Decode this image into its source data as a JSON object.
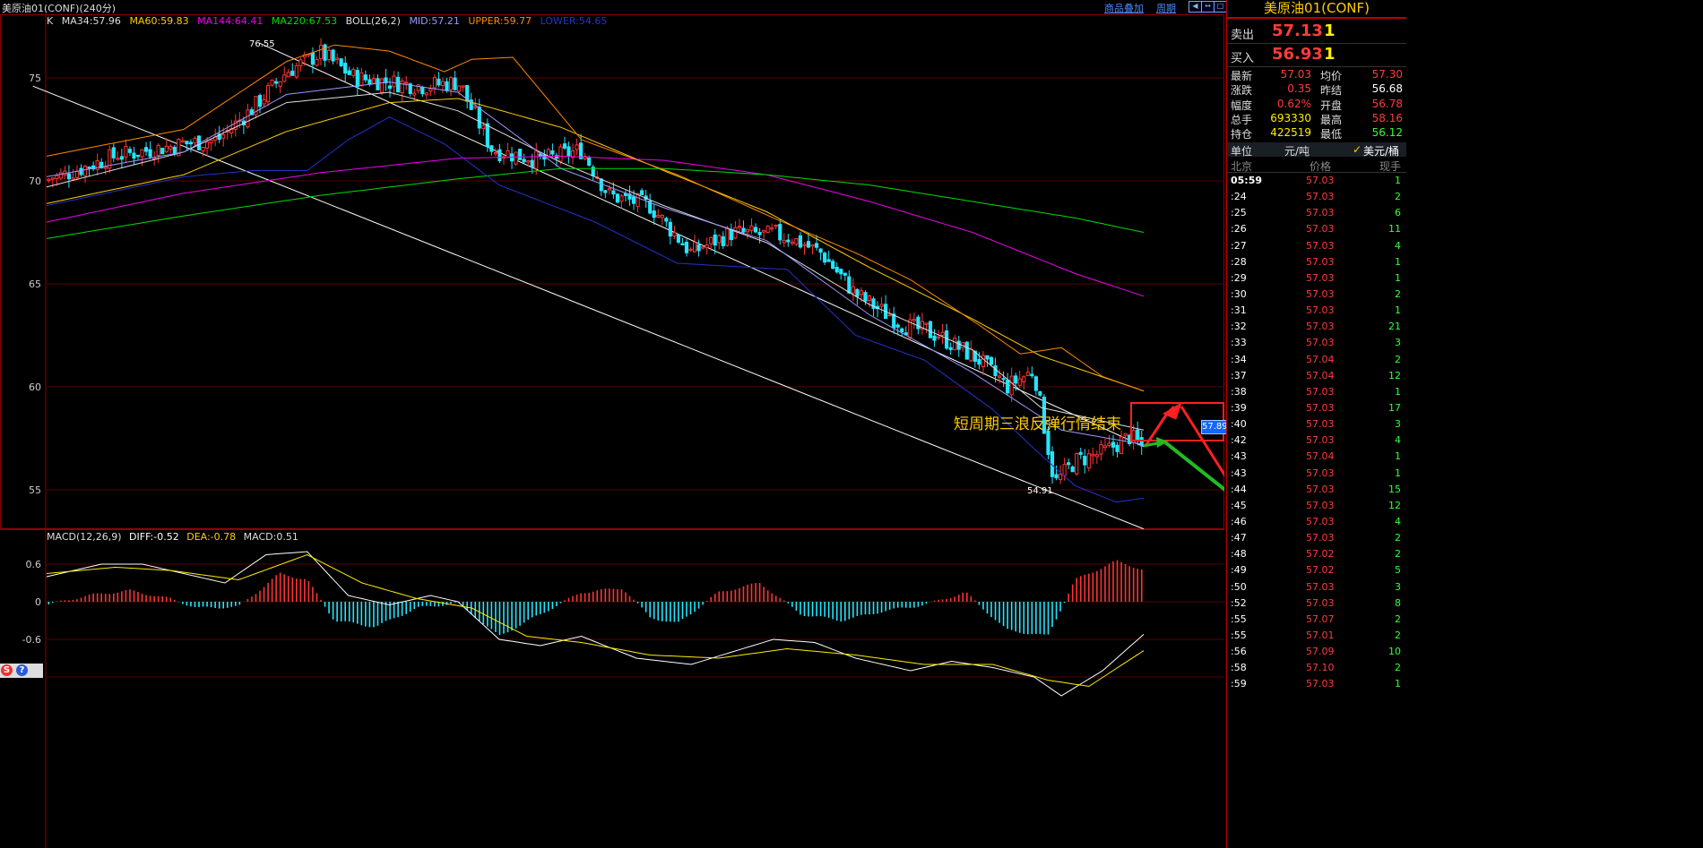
{
  "window": {
    "title": "美原油01(CONF)(240分)",
    "overlay_link": "商品叠加",
    "period_link": "周期"
  },
  "colors": {
    "up": "#ff3333",
    "down": "#22e6ff",
    "ma34": "#dddddd",
    "ma60": "#ffcc00",
    "ma144": "#ee00ee",
    "ma220": "#00dd00",
    "mid": "#9999ff",
    "upper": "#ff8800",
    "lower": "#2233cc"
  },
  "main_legend": {
    "k": "K",
    "ma34": "MA34:57.96",
    "ma60": "MA60:59.83",
    "ma144": "MA144:64.41",
    "ma220": "MA220:67.53",
    "boll": "BOLL(26,2)",
    "mid": "MID:57.21",
    "upper": "UPPER:59.77",
    "lower": "LOWER:54.65"
  },
  "macd_legend": {
    "name": "MACD(12,26,9)",
    "diff": "DIFF:-0.52",
    "dea": "DEA:-0.78",
    "macd": "MACD:0.51"
  },
  "annotation": {
    "text": "短周期三浪反弹行情结束",
    "price_tag": "57.89",
    "high_label": "76.55",
    "low_label": "54.91"
  },
  "chart_data": [
    {
      "type": "candlestick",
      "title": "",
      "y_ticks": [
        "75",
        "70",
        "65",
        "60",
        "55"
      ],
      "ylim": [
        53,
        76.8
      ],
      "grid": true,
      "x_range": [
        0,
        160
      ],
      "high": 76.55,
      "low": 54.91,
      "close_waypoints": [
        {
          "x": 0,
          "y": 70.0
        },
        {
          "x": 10,
          "y": 71.2
        },
        {
          "x": 20,
          "y": 71.8
        },
        {
          "x": 25,
          "y": 72.0
        },
        {
          "x": 30,
          "y": 73.5
        },
        {
          "x": 35,
          "y": 75.3
        },
        {
          "x": 40,
          "y": 76.2
        },
        {
          "x": 45,
          "y": 75.0
        },
        {
          "x": 55,
          "y": 74.6
        },
        {
          "x": 60,
          "y": 74.8
        },
        {
          "x": 65,
          "y": 71.5
        },
        {
          "x": 72,
          "y": 71.0
        },
        {
          "x": 78,
          "y": 71.5
        },
        {
          "x": 82,
          "y": 69.3
        },
        {
          "x": 88,
          "y": 68.8
        },
        {
          "x": 94,
          "y": 66.5
        },
        {
          "x": 100,
          "y": 67.5
        },
        {
          "x": 108,
          "y": 67.3
        },
        {
          "x": 113,
          "y": 66.5
        },
        {
          "x": 118,
          "y": 64.5
        },
        {
          "x": 125,
          "y": 63.0
        },
        {
          "x": 130,
          "y": 62.5
        },
        {
          "x": 136,
          "y": 61.3
        },
        {
          "x": 140,
          "y": 60.0
        },
        {
          "x": 144,
          "y": 60.8
        },
        {
          "x": 147,
          "y": 55.3
        },
        {
          "x": 150,
          "y": 56.4
        },
        {
          "x": 154,
          "y": 56.8
        },
        {
          "x": 158,
          "y": 57.6
        },
        {
          "x": 160,
          "y": 57.0
        }
      ],
      "overlays": {
        "ma34": {
          "label": "MA34",
          "points": [
            [
              0,
              69.7
            ],
            [
              20,
              71.4
            ],
            [
              35,
              73.8
            ],
            [
              50,
              74.3
            ],
            [
              60,
              73.4
            ],
            [
              75,
              70.9
            ],
            [
              90,
              68.8
            ],
            [
              105,
              67.0
            ],
            [
              120,
              64.0
            ],
            [
              135,
              61.8
            ],
            [
              145,
              59.0
            ],
            [
              160,
              57.9
            ]
          ]
        },
        "ma60": {
          "label": "MA60",
          "points": [
            [
              0,
              68.9
            ],
            [
              20,
              70.3
            ],
            [
              35,
              72.4
            ],
            [
              50,
              73.8
            ],
            [
              60,
              74.0
            ],
            [
              75,
              72.6
            ],
            [
              90,
              70.5
            ],
            [
              105,
              68.5
            ],
            [
              120,
              65.8
            ],
            [
              135,
              63.3
            ],
            [
              145,
              61.5
            ],
            [
              160,
              59.8
            ]
          ]
        },
        "ma144": {
          "label": "MA144",
          "points": [
            [
              0,
              68.0
            ],
            [
              20,
              69.4
            ],
            [
              40,
              70.4
            ],
            [
              60,
              71.1
            ],
            [
              75,
              71.2
            ],
            [
              90,
              71.0
            ],
            [
              105,
              70.3
            ],
            [
              120,
              69.0
            ],
            [
              135,
              67.5
            ],
            [
              150,
              65.5
            ],
            [
              160,
              64.4
            ]
          ]
        },
        "ma220": {
          "label": "MA220",
          "points": [
            [
              0,
              67.2
            ],
            [
              20,
              68.3
            ],
            [
              40,
              69.3
            ],
            [
              60,
              70.1
            ],
            [
              75,
              70.6
            ],
            [
              90,
              70.6
            ],
            [
              105,
              70.3
            ],
            [
              120,
              69.8
            ],
            [
              135,
              69.0
            ],
            [
              150,
              68.2
            ],
            [
              160,
              67.5
            ]
          ]
        },
        "mid": {
          "label": "MID",
          "points": [
            [
              0,
              70.2
            ],
            [
              20,
              71.4
            ],
            [
              35,
              74.2
            ],
            [
              50,
              74.8
            ],
            [
              60,
              74.3
            ],
            [
              75,
              70.6
            ],
            [
              90,
              68.7
            ],
            [
              105,
              67.1
            ],
            [
              120,
              63.5
            ],
            [
              135,
              60.7
            ],
            [
              148,
              57.9
            ],
            [
              160,
              57.2
            ]
          ]
        },
        "upper": {
          "label": "UPPER",
          "points": [
            [
              0,
              71.2
            ],
            [
              20,
              72.5
            ],
            [
              35,
              75.8
            ],
            [
              42,
              76.6
            ],
            [
              50,
              76.3
            ],
            [
              58,
              75.3
            ],
            [
              62,
              75.9
            ],
            [
              68,
              76.0
            ],
            [
              78,
              72.0
            ],
            [
              92,
              70.3
            ],
            [
              106,
              68.2
            ],
            [
              118,
              66.5
            ],
            [
              126,
              65.2
            ],
            [
              136,
              63.0
            ],
            [
              142,
              61.6
            ],
            [
              148,
              61.9
            ],
            [
              154,
              60.5
            ],
            [
              160,
              59.8
            ]
          ]
        },
        "lower": {
          "label": "LOWER",
          "points": [
            [
              0,
              68.8
            ],
            [
              20,
              70.2
            ],
            [
              30,
              70.5
            ],
            [
              38,
              70.5
            ],
            [
              44,
              72.0
            ],
            [
              50,
              73.1
            ],
            [
              58,
              71.8
            ],
            [
              66,
              69.8
            ],
            [
              80,
              68.0
            ],
            [
              92,
              66.0
            ],
            [
              108,
              65.7
            ],
            [
              118,
              62.5
            ],
            [
              128,
              61.3
            ],
            [
              138,
              58.9
            ],
            [
              144,
              57.0
            ],
            [
              150,
              55.2
            ],
            [
              156,
              54.4
            ],
            [
              160,
              54.6
            ]
          ]
        }
      },
      "trendlines": [
        {
          "from": [
            -2,
            74.6
          ],
          "to": [
            160,
            53.1
          ]
        },
        {
          "from": [
            31,
            76.7
          ],
          "to": [
            160,
            57.1
          ]
        }
      ]
    },
    {
      "type": "bar",
      "title": "",
      "y_ticks": [
        "0.6",
        "0",
        "-0.6"
      ],
      "ylim": [
        -1.5,
        1.0
      ],
      "series": [
        {
          "name": "DIFF",
          "points": [
            [
              0,
              0.4
            ],
            [
              8,
              0.6
            ],
            [
              14,
              0.6
            ],
            [
              20,
              0.45
            ],
            [
              26,
              0.3
            ],
            [
              32,
              0.75
            ],
            [
              38,
              0.8
            ],
            [
              44,
              0.1
            ],
            [
              50,
              -0.05
            ],
            [
              56,
              0.1
            ],
            [
              60,
              0.0
            ],
            [
              66,
              -0.6
            ],
            [
              72,
              -0.7
            ],
            [
              78,
              -0.55
            ],
            [
              86,
              -0.9
            ],
            [
              94,
              -1.0
            ],
            [
              100,
              -0.8
            ],
            [
              106,
              -0.6
            ],
            [
              112,
              -0.65
            ],
            [
              118,
              -0.9
            ],
            [
              126,
              -1.1
            ],
            [
              132,
              -0.95
            ],
            [
              138,
              -1.05
            ],
            [
              144,
              -1.2
            ],
            [
              148,
              -1.5
            ],
            [
              154,
              -1.1
            ],
            [
              160,
              -0.52
            ]
          ]
        },
        {
          "name": "DEA",
          "points": [
            [
              0,
              0.45
            ],
            [
              10,
              0.55
            ],
            [
              18,
              0.5
            ],
            [
              28,
              0.35
            ],
            [
              38,
              0.75
            ],
            [
              46,
              0.3
            ],
            [
              54,
              0.05
            ],
            [
              62,
              -0.1
            ],
            [
              70,
              -0.55
            ],
            [
              78,
              -0.65
            ],
            [
              88,
              -0.85
            ],
            [
              98,
              -0.9
            ],
            [
              108,
              -0.75
            ],
            [
              118,
              -0.85
            ],
            [
              128,
              -1.0
            ],
            [
              138,
              -1.0
            ],
            [
              146,
              -1.25
            ],
            [
              152,
              -1.35
            ],
            [
              160,
              -0.78
            ]
          ]
        }
      ],
      "macd_histogram": [
        [
          0,
          -0.05
        ],
        [
          6,
          0.1
        ],
        [
          12,
          0.18
        ],
        [
          18,
          0.05
        ],
        [
          22,
          -0.1
        ],
        [
          28,
          -0.08
        ],
        [
          34,
          0.45
        ],
        [
          38,
          0.35
        ],
        [
          42,
          -0.3
        ],
        [
          48,
          -0.4
        ],
        [
          54,
          -0.1
        ],
        [
          60,
          -0.02
        ],
        [
          66,
          -0.55
        ],
        [
          72,
          -0.2
        ],
        [
          78,
          0.15
        ],
        [
          84,
          0.22
        ],
        [
          88,
          -0.25
        ],
        [
          92,
          -0.35
        ],
        [
          98,
          0.15
        ],
        [
          104,
          0.3
        ],
        [
          110,
          -0.2
        ],
        [
          116,
          -0.3
        ],
        [
          122,
          -0.15
        ],
        [
          128,
          -0.05
        ],
        [
          134,
          0.15
        ],
        [
          140,
          -0.45
        ],
        [
          146,
          -0.55
        ],
        [
          150,
          0.35
        ],
        [
          156,
          0.65
        ],
        [
          160,
          0.51
        ]
      ]
    }
  ],
  "panel": {
    "title": "美原油01(CONF)",
    "sell": {
      "label": "卖出",
      "price": "57.13",
      "vol": "1"
    },
    "buy": {
      "label": "买入",
      "price": "56.93",
      "vol": "1"
    },
    "stats": [
      {
        "l1": "最新",
        "v1": "57.03",
        "c1": "#ff3b3b",
        "l2": "均价",
        "v2": "57.30",
        "c2": "#ff3b3b"
      },
      {
        "l1": "涨跌",
        "v1": "0.35",
        "c1": "#ff3b3b",
        "l2": "昨结",
        "v2": "56.68",
        "c2": "#ffffff"
      },
      {
        "l1": "幅度",
        "v1": "0.62%",
        "c1": "#ff3b3b",
        "l2": "开盘",
        "v2": "56.78",
        "c2": "#ff3b3b"
      },
      {
        "l1": "总手",
        "v1": "693330",
        "c1": "#ffee00",
        "l2": "最高",
        "v2": "58.16",
        "c2": "#ff3b3b"
      },
      {
        "l1": "持仓",
        "v1": "422519",
        "c1": "#ffee00",
        "l2": "最低",
        "v2": "56.12",
        "c2": "#33ff33"
      }
    ],
    "unit_label": "单位",
    "unit_value": "元/吨",
    "unit_option": "美元/桶",
    "col_time": "北京",
    "col_price": "价格",
    "col_vol": "现手",
    "ticks": [
      {
        "t": "05:59",
        "p": "57.03",
        "v": "1"
      },
      {
        "t": ":24",
        "p": "57.03",
        "v": "2"
      },
      {
        "t": ":25",
        "p": "57.03",
        "v": "6"
      },
      {
        "t": ":26",
        "p": "57.03",
        "v": "11"
      },
      {
        "t": ":27",
        "p": "57.03",
        "v": "4"
      },
      {
        "t": ":28",
        "p": "57.03",
        "v": "1"
      },
      {
        "t": ":29",
        "p": "57.03",
        "v": "1"
      },
      {
        "t": ":30",
        "p": "57.03",
        "v": "2"
      },
      {
        "t": ":31",
        "p": "57.03",
        "v": "1"
      },
      {
        "t": ":32",
        "p": "57.03",
        "v": "21"
      },
      {
        "t": ":33",
        "p": "57.03",
        "v": "3"
      },
      {
        "t": ":34",
        "p": "57.04",
        "v": "2"
      },
      {
        "t": ":37",
        "p": "57.04",
        "v": "12"
      },
      {
        "t": ":38",
        "p": "57.03",
        "v": "1"
      },
      {
        "t": ":39",
        "p": "57.03",
        "v": "17"
      },
      {
        "t": ":40",
        "p": "57.03",
        "v": "3"
      },
      {
        "t": ":42",
        "p": "57.03",
        "v": "4"
      },
      {
        "t": ":43",
        "p": "57.04",
        "v": "1"
      },
      {
        "t": ":43",
        "p": "57.03",
        "v": "1"
      },
      {
        "t": ":44",
        "p": "57.03",
        "v": "15"
      },
      {
        "t": ":45",
        "p": "57.03",
        "v": "12"
      },
      {
        "t": ":46",
        "p": "57.03",
        "v": "4"
      },
      {
        "t": ":47",
        "p": "57.03",
        "v": "2"
      },
      {
        "t": ":48",
        "p": "57.02",
        "v": "2"
      },
      {
        "t": ":49",
        "p": "57.02",
        "v": "5"
      },
      {
        "t": ":50",
        "p": "57.03",
        "v": "3"
      },
      {
        "t": ":52",
        "p": "57.03",
        "v": "8"
      },
      {
        "t": ":55",
        "p": "57.07",
        "v": "2"
      },
      {
        "t": ":55",
        "p": "57.01",
        "v": "2"
      },
      {
        "t": ":56",
        "p": "57.09",
        "v": "10"
      },
      {
        "t": ":58",
        "p": "57.10",
        "v": "2"
      },
      {
        "t": ":59",
        "p": "57.03",
        "v": "1"
      }
    ]
  },
  "icons": {
    "sogou": "sogou-s-icon",
    "help": "help-icon"
  }
}
